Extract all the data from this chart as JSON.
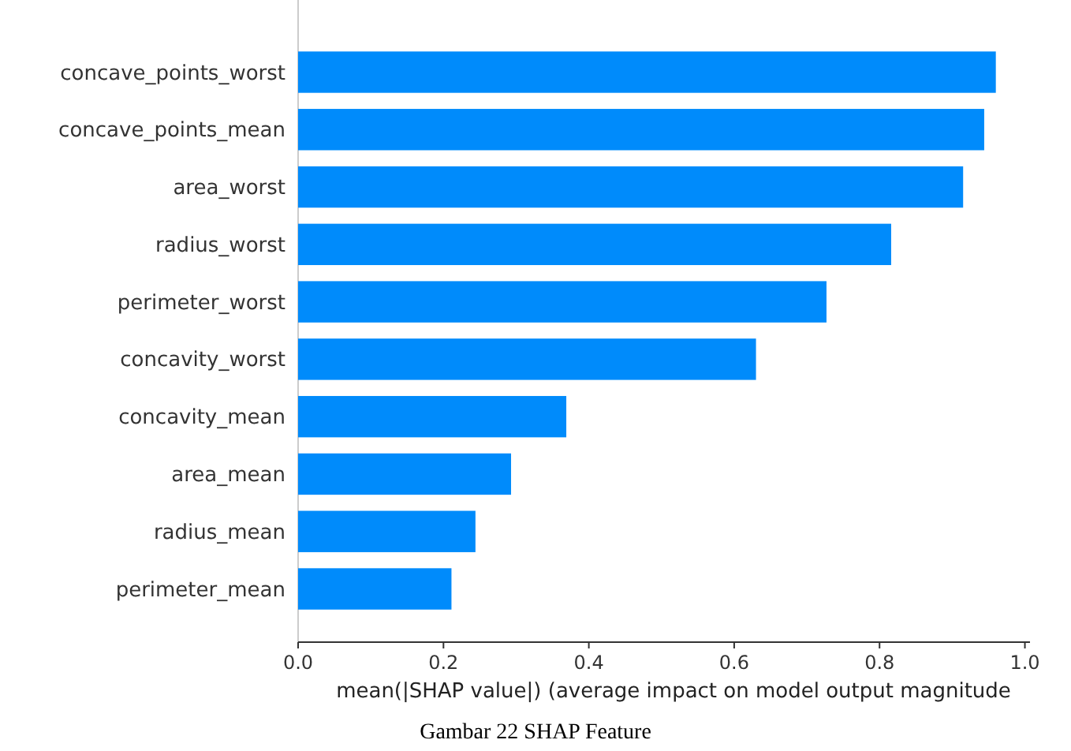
{
  "chart_data": {
    "type": "bar",
    "orientation": "horizontal",
    "categories": [
      "concave_points_worst",
      "concave_points_mean",
      "area_worst",
      "radius_worst",
      "perimeter_worst",
      "concavity_worst",
      "concavity_mean",
      "area_mean",
      "radius_mean",
      "perimeter_mean"
    ],
    "values": [
      0.96,
      0.944,
      0.915,
      0.816,
      0.727,
      0.63,
      0.369,
      0.293,
      0.244,
      0.211
    ],
    "color": "#008bfb",
    "xlim": [
      0,
      1.007
    ],
    "xticks": [
      {
        "value": 0,
        "label": "0.0"
      },
      {
        "value": 0.2,
        "label": "0.2"
      },
      {
        "value": 0.4,
        "label": "0.4"
      },
      {
        "value": 0.6,
        "label": "0.6"
      },
      {
        "value": 0.8,
        "label": "0.8"
      },
      {
        "value": 1,
        "label": "1.0"
      }
    ],
    "xlabel": "mean(|SHAP value|) (average impact on model output magnitude",
    "annotations": [
      "Gambar 22 SHAP Feature"
    ],
    "grid": false
  }
}
